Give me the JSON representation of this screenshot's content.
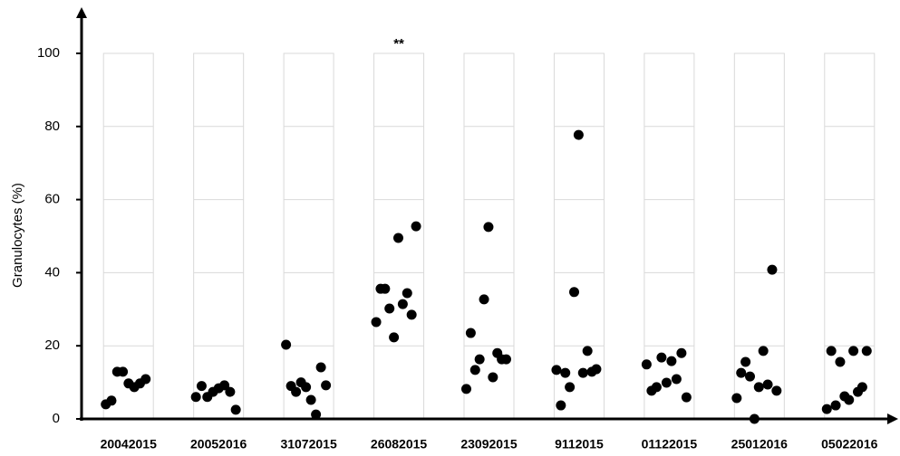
{
  "chart_data": {
    "type": "strip",
    "y_label": "Granulocytes (%)",
    "categories": [
      "20042015",
      "20052016",
      "31072015",
      "26082015",
      "23092015",
      "9112015",
      "01122015",
      "25012016",
      "05022016"
    ],
    "values": [
      [
        4,
        5,
        12.9,
        12.9,
        9.7,
        8.7,
        9.7,
        10.9
      ],
      [
        6,
        9,
        6,
        7.4,
        8.4,
        9.2,
        7.4,
        2.5
      ],
      [
        20.3,
        9,
        7.4,
        10,
        8.7,
        5.2,
        1.2,
        14.1,
        9.2
      ],
      [
        26.5,
        35.6,
        35.6,
        30.2,
        22.3,
        49.5,
        31.4,
        34.4,
        28.5,
        52.7
      ],
      [
        8.2,
        23.5,
        13.4,
        16.3,
        32.7,
        52.5,
        11.4,
        18,
        16.3,
        16.3
      ],
      [
        13.4,
        3.7,
        12.6,
        8.7,
        34.7,
        77.7,
        12.6,
        18.6,
        12.9,
        13.6
      ],
      [
        14.9,
        7.7,
        8.7,
        16.8,
        9.9,
        15.8,
        10.9,
        18,
        5.9
      ],
      [
        5.7,
        12.6,
        15.6,
        11.6,
        0,
        8.7,
        18.6,
        9.4,
        40.8,
        7.7
      ],
      [
        2.7,
        18.6,
        3.7,
        15.6,
        6.2,
        5.2,
        18.6,
        7.4,
        8.7,
        18.6
      ]
    ],
    "color": "#000000",
    "annotations": [
      {
        "text": "**",
        "category": "26082015"
      }
    ],
    "ylim": [
      0,
      100
    ],
    "yticks": [
      0,
      20,
      40,
      60,
      80,
      100
    ],
    "grid": true
  }
}
